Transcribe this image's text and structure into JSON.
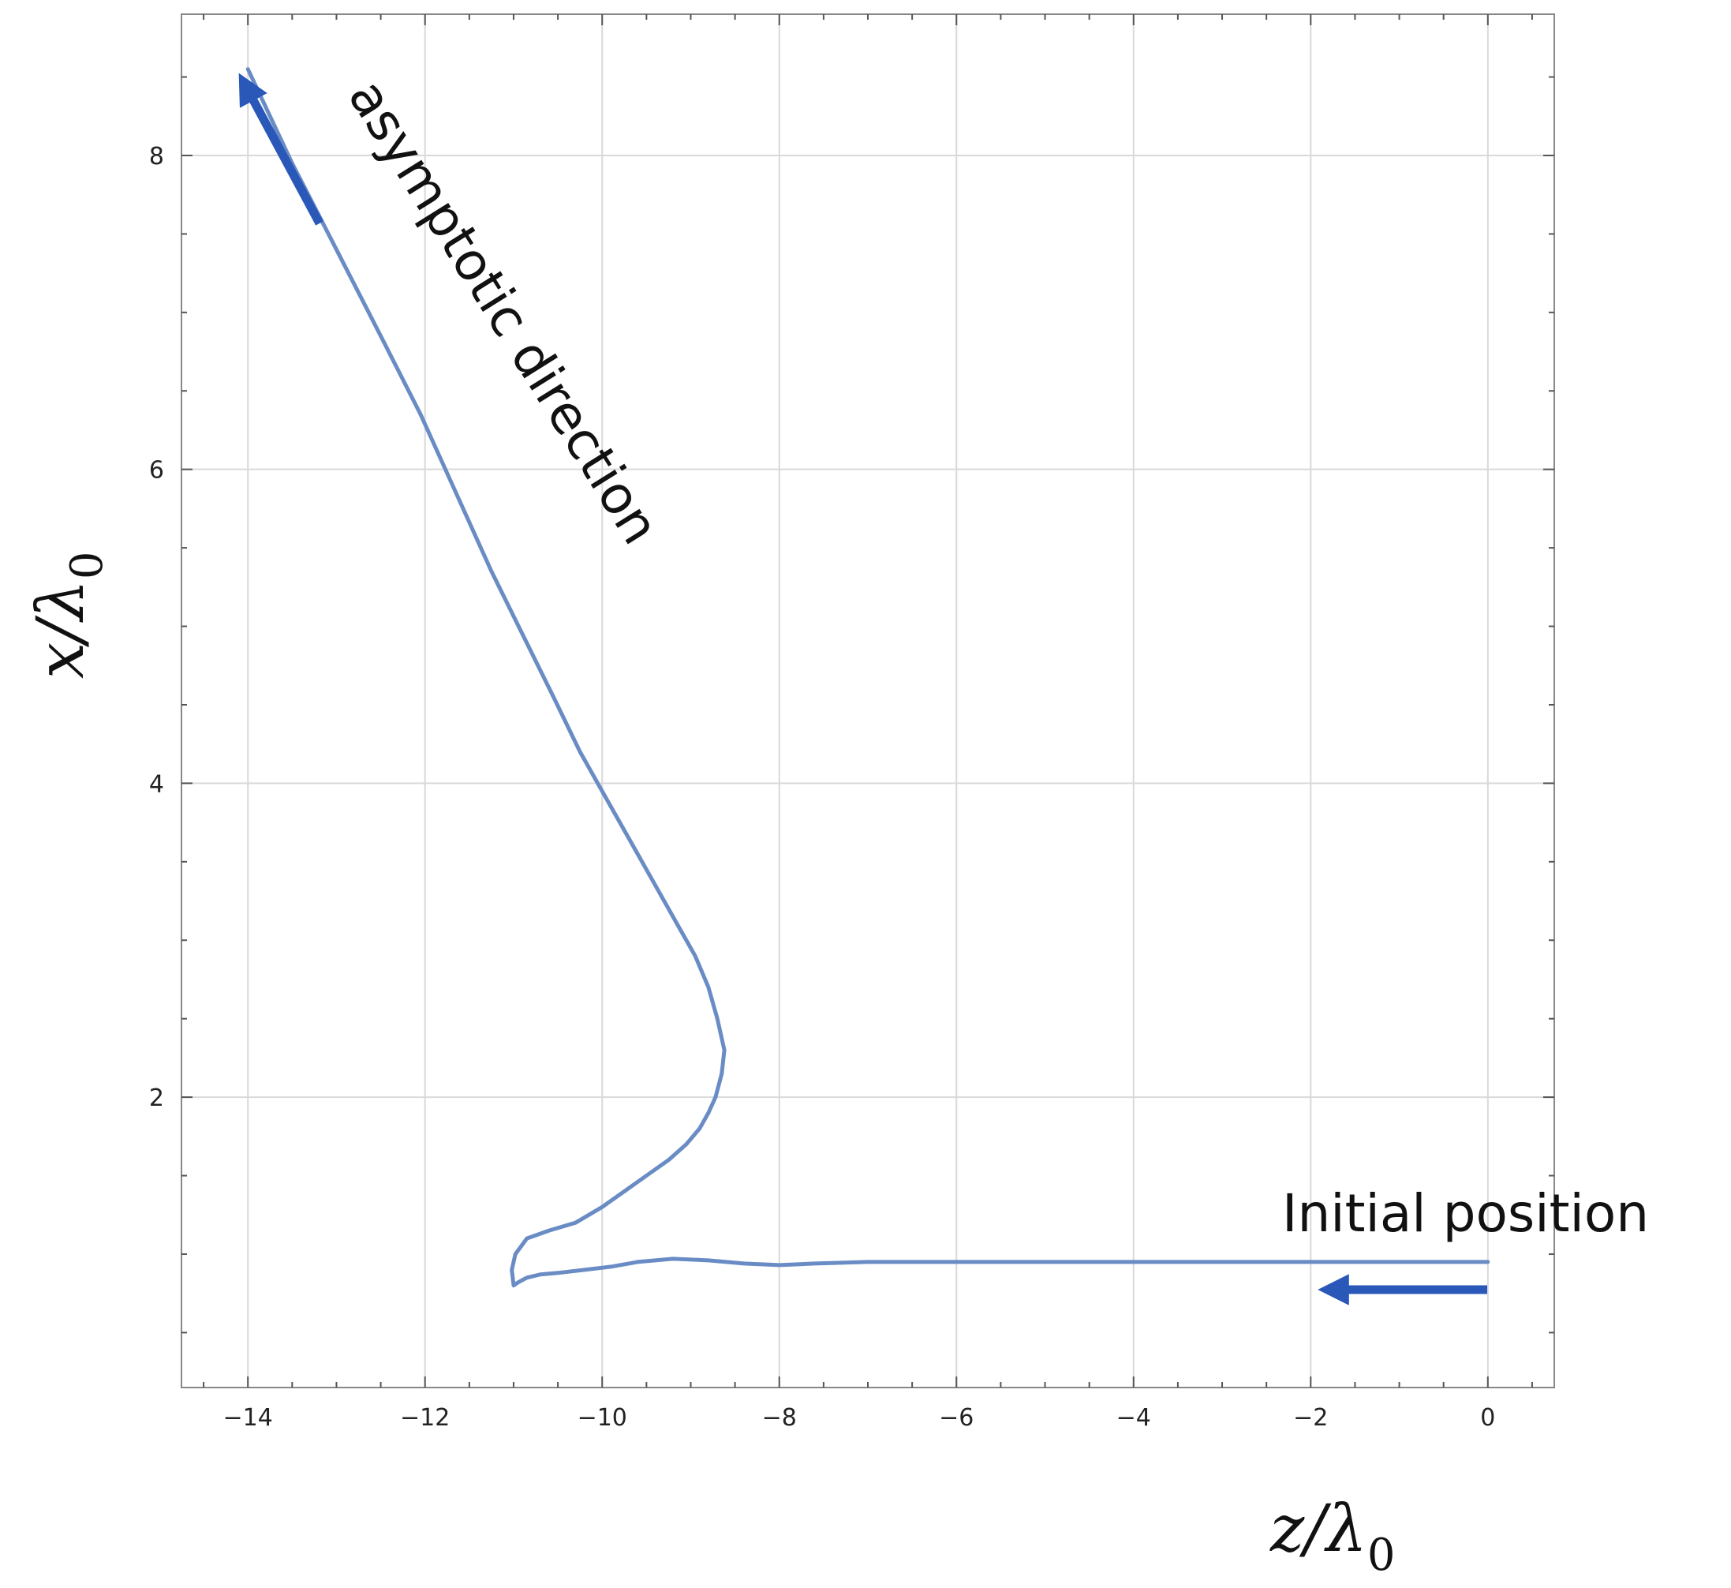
{
  "chart_data": {
    "type": "line",
    "title": "",
    "xlabel_main": "z/λ",
    "xlabel_sub": "0",
    "ylabel_main": "x/λ",
    "ylabel_sub": "0",
    "xlim": [
      -14.75,
      0.75
    ],
    "ylim": [
      0.15,
      8.9
    ],
    "x_ticks": [
      -14,
      -12,
      -10,
      -8,
      -6,
      -4,
      -2,
      0
    ],
    "x_tick_labels": [
      "−14",
      "−12",
      "−10",
      "−8",
      "−6",
      "−4",
      "−2",
      "0"
    ],
    "y_ticks": [
      2,
      4,
      6,
      8
    ],
    "y_tick_labels": [
      "2",
      "4",
      "6",
      "8"
    ],
    "grid": true,
    "series_color": "#6a8cc5",
    "arrow_color": "#2a58b8",
    "series": [
      {
        "x": [
          0,
          -1,
          -2,
          -3,
          -4,
          -5,
          -6,
          -7,
          -7.6,
          -8.0,
          -8.4,
          -8.8,
          -9.2,
          -9.6,
          -9.9,
          -10.2,
          -10.5,
          -10.7,
          -10.85,
          -10.95,
          -11.0,
          -11.02,
          -10.98,
          -10.85,
          -10.6,
          -10.3,
          -10.0,
          -9.75,
          -9.5,
          -9.25,
          -9.05,
          -8.9,
          -8.8,
          -8.72,
          -8.65,
          -8.62,
          -8.7,
          -8.8,
          -8.95,
          -9.15,
          -9.4,
          -9.65,
          -9.95,
          -10.25,
          -10.55,
          -10.9,
          -11.25,
          -11.65,
          -12.05,
          -12.5,
          -13.0,
          -13.5,
          -14.0
        ],
        "y": [
          0.95,
          0.95,
          0.95,
          0.95,
          0.95,
          0.95,
          0.95,
          0.95,
          0.94,
          0.93,
          0.94,
          0.96,
          0.97,
          0.95,
          0.92,
          0.9,
          0.88,
          0.87,
          0.85,
          0.82,
          0.8,
          0.9,
          1.0,
          1.1,
          1.15,
          1.2,
          1.3,
          1.4,
          1.5,
          1.6,
          1.7,
          1.8,
          1.9,
          2.0,
          2.15,
          2.3,
          2.5,
          2.7,
          2.9,
          3.1,
          3.35,
          3.6,
          3.9,
          4.2,
          4.55,
          4.95,
          5.35,
          5.85,
          6.35,
          6.85,
          7.4,
          7.95,
          8.55
        ]
      }
    ],
    "annotations": {
      "asymptotic": "asymptotic direction",
      "initial": "Initial position"
    }
  }
}
